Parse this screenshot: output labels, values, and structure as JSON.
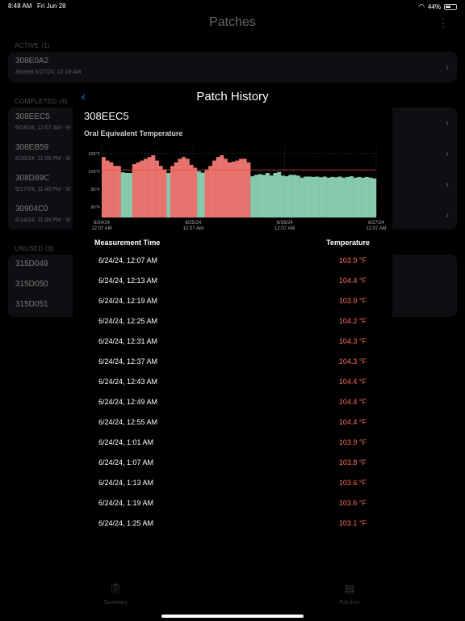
{
  "status_bar": {
    "time": "8:48 AM",
    "date": "Fri Jun 28",
    "battery": "44%",
    "battery_level": 0.44
  },
  "nav": {
    "title": "Patches",
    "more_icon": "ellipsis-vertical-icon"
  },
  "sections": {
    "active": {
      "label": "ACTIVE (1)",
      "items": [
        {
          "name": "308E0A2",
          "sub": "Started 6/27/24, 12:18 AM"
        }
      ]
    },
    "completed": {
      "label": "COMPLETED (4)",
      "items": [
        {
          "name": "308EEC5",
          "sub": "6/24/24, 12:07 AM - 6/"
        },
        {
          "name": "308EB59",
          "sub": "6/20/24, 11:56 PM - 6/"
        },
        {
          "name": "308D89C",
          "sub": "6/17/24, 11:45 PM - 6/"
        },
        {
          "name": "30904C0",
          "sub": "6/14/24, 11:34 PM - 6/"
        }
      ]
    },
    "unused": {
      "label": "UNUSED (3)",
      "items": [
        {
          "name": "315D049"
        },
        {
          "name": "315D050"
        },
        {
          "name": "315D051"
        }
      ]
    }
  },
  "tabbar": {
    "summary": "Summary",
    "patches": "Patches"
  },
  "sheet": {
    "title": "Patch History",
    "patch_id": "308EEC5",
    "chart_title": "Oral Equivalent Temperature",
    "table_headers": {
      "time": "Measurement Time",
      "temp": "Temperature"
    },
    "rows": [
      {
        "time": "6/24/24, 12:07 AM",
        "temp": "103.9 °F"
      },
      {
        "time": "6/24/24, 12:13 AM",
        "temp": "104.4 °F"
      },
      {
        "time": "6/24/24, 12:19 AM",
        "temp": "103.9 °F"
      },
      {
        "time": "6/24/24, 12:25 AM",
        "temp": "104.2 °F"
      },
      {
        "time": "6/24/24, 12:31 AM",
        "temp": "104.3 °F"
      },
      {
        "time": "6/24/24, 12:37 AM",
        "temp": "104.3 °F"
      },
      {
        "time": "6/24/24, 12:43 AM",
        "temp": "104.4 °F"
      },
      {
        "time": "6/24/24, 12:49 AM",
        "temp": "104.4 °F"
      },
      {
        "time": "6/24/24, 12:55 AM",
        "temp": "104.4 °F"
      },
      {
        "time": "6/24/24, 1:01 AM",
        "temp": "103.9 °F"
      },
      {
        "time": "6/24/24, 1:07 AM",
        "temp": "103.8 °F"
      },
      {
        "time": "6/24/24, 1:13 AM",
        "temp": "103.6 °F"
      },
      {
        "time": "6/24/24, 1:19 AM",
        "temp": "103.6 °F"
      },
      {
        "time": "6/24/24, 1:25 AM",
        "temp": "103.1 °F"
      }
    ]
  },
  "chart_data": {
    "type": "bar",
    "title": "Oral Equivalent Temperature",
    "y_tick_labels": [
      "105°F",
      "100°F",
      "95°F",
      "90°F"
    ],
    "y_ticks": [
      105,
      100,
      95,
      90
    ],
    "ylim": [
      87,
      107
    ],
    "threshold": 100.4,
    "x_tick_labels": [
      [
        "6/24/24",
        "12:07 AM"
      ],
      [
        "6/25/24",
        "12:07 AM"
      ],
      [
        "6/26/24",
        "12:07 AM"
      ],
      [
        "6/27/24",
        "12:07 AM"
      ]
    ],
    "x_ticks_hours": [
      0,
      24,
      48,
      72
    ],
    "x_range_hours": [
      0,
      72
    ],
    "colors": {
      "fever": "#e8736e",
      "normal": "#86c9ad",
      "threshold": "#e84a3c",
      "grid": "#444"
    },
    "x_hours": [
      0,
      1,
      2,
      3,
      4,
      5,
      6,
      7,
      8,
      9,
      10,
      11,
      12,
      13,
      14,
      15,
      16,
      17,
      18,
      19,
      20,
      21,
      22,
      23,
      24,
      25,
      26,
      27,
      28,
      29,
      30,
      31,
      32,
      33,
      34,
      35,
      36,
      37,
      38,
      39,
      40,
      41,
      42,
      43,
      44,
      45,
      46,
      47,
      48,
      49,
      50,
      51,
      52,
      53,
      54,
      55,
      56,
      57,
      58,
      59,
      60,
      61,
      62,
      63,
      64,
      65,
      66,
      67,
      68,
      69,
      70,
      71
    ],
    "values": [
      104,
      103,
      102.5,
      101.5,
      101.5,
      99.7,
      99.5,
      99.5,
      102,
      102.5,
      103,
      103.5,
      104,
      104.5,
      103,
      101.5,
      100.5,
      99.5,
      101.5,
      102.5,
      103.5,
      104,
      103.5,
      101.8,
      101,
      100,
      99.6,
      100.5,
      101.5,
      103,
      104,
      104.5,
      103.5,
      102.5,
      102.7,
      103,
      103.5,
      103.5,
      102.5,
      98.6,
      99,
      99.2,
      99,
      99.5,
      98.8,
      99.5,
      99.8,
      98.8,
      98.6,
      99,
      99,
      98.8,
      98.2,
      98.5,
      98.5,
      98.4,
      98.5,
      98.3,
      98.5,
      98.2,
      98.4,
      98.3,
      98.5,
      98.2,
      98.4,
      98.6,
      98.2,
      98.4,
      98.2,
      98.4,
      98.2,
      98
    ]
  }
}
